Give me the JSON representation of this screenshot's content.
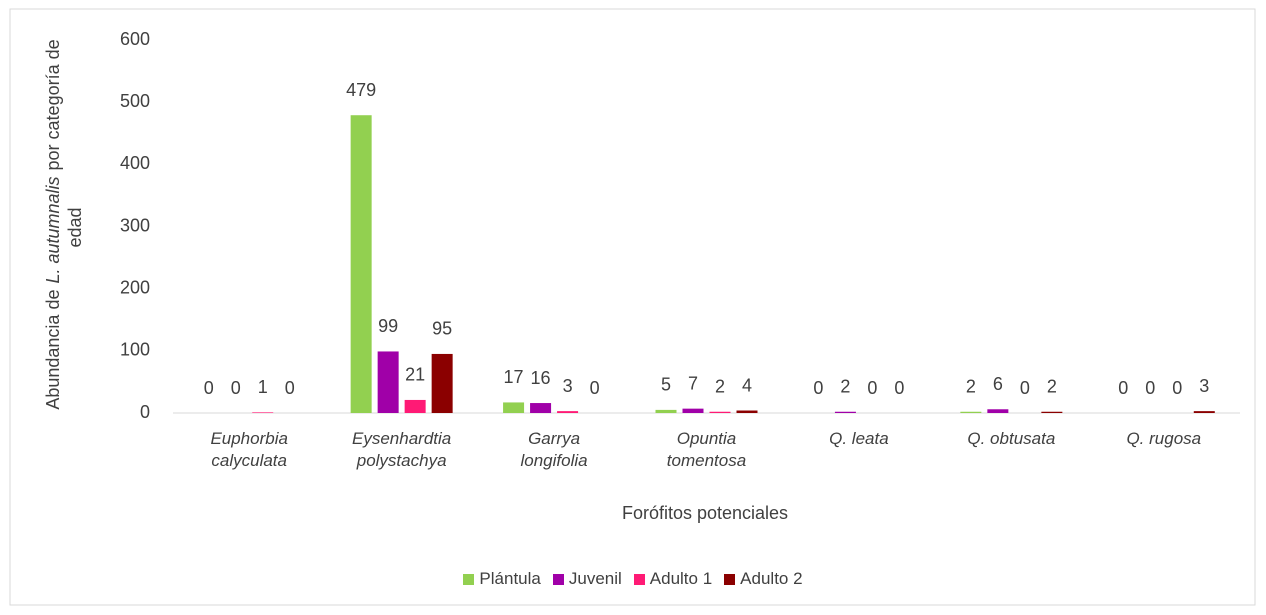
{
  "chart_data": {
    "type": "bar",
    "categories": [
      "Euphorbia calyculata",
      "Eysenhardtia polystachya",
      "Garrya longifolia",
      "Opuntia tomentosa",
      "Q. leata",
      "Q. obtusata",
      "Q. rugosa"
    ],
    "series": [
      {
        "name": "Plántula",
        "color": "#92d050",
        "values": [
          0,
          479,
          17,
          5,
          0,
          2,
          0
        ]
      },
      {
        "name": "Juvenil",
        "color": "#a000a8",
        "values": [
          0,
          99,
          16,
          7,
          2,
          6,
          0
        ]
      },
      {
        "name": "Adulto 1",
        "color": "#ff1a75",
        "values": [
          1,
          21,
          3,
          2,
          0,
          0,
          0
        ]
      },
      {
        "name": "Adulto 2",
        "color": "#8b0000",
        "values": [
          0,
          95,
          0,
          4,
          0,
          2,
          3
        ]
      }
    ],
    "xlabel": "Forófitos potenciales",
    "ylabel_parts": [
      "Abundancia de",
      "L. autumnalis",
      "por categoría de edad"
    ],
    "ylim": [
      0,
      600
    ],
    "yticks": [
      0,
      100,
      200,
      300,
      400,
      500,
      600
    ],
    "grid": false,
    "legend": "bottom"
  }
}
